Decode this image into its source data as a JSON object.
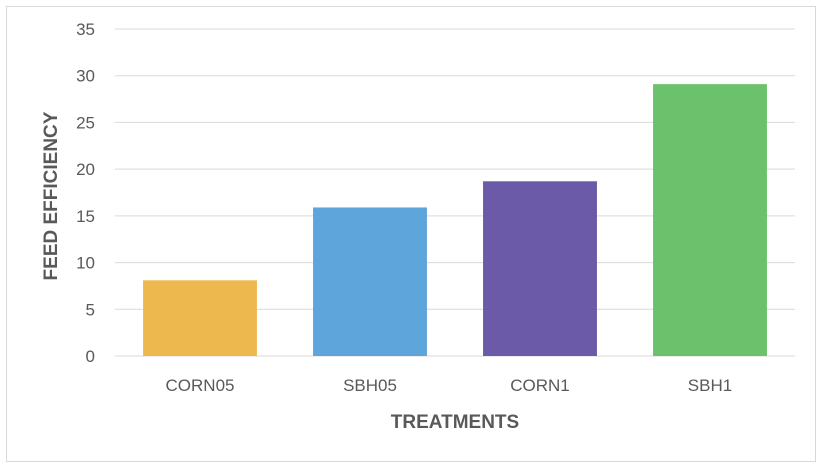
{
  "chart_data": {
    "type": "bar",
    "title": "",
    "xlabel": "TREATMENTS",
    "ylabel": "FEED EFFICIENCY",
    "categories": [
      "CORN05",
      "SBH05",
      "CORN1",
      "SBH1"
    ],
    "values": [
      8.1,
      15.9,
      18.7,
      29.1
    ],
    "colors": [
      "#EDB94F",
      "#5EA5DB",
      "#6A5AA8",
      "#6CC26C"
    ],
    "ylim": [
      0,
      35
    ],
    "yticks": [
      "0",
      "5",
      "10",
      "15",
      "20",
      "25",
      "30",
      "35"
    ],
    "grid": true,
    "legend": "none"
  }
}
